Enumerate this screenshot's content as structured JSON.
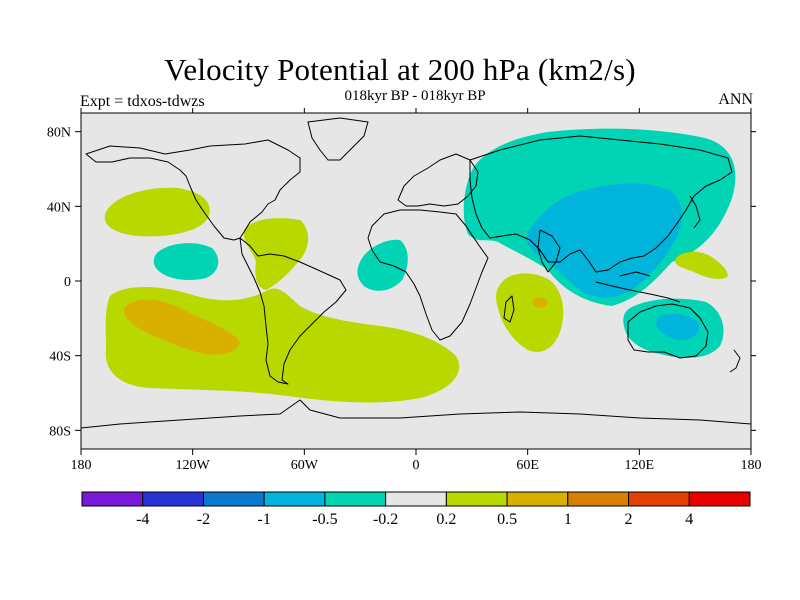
{
  "figure": {
    "title": "Velocity Potential at 200 hPa (km2/s)",
    "subtitle": "018kyr BP - 018kyr BP",
    "left_label": "Expt = tdxos-tdwzs",
    "right_label": "ANN"
  },
  "map": {
    "projection": "cylindrical equidistant",
    "lon_range": [
      -180,
      180
    ],
    "lat_range": [
      -90,
      90
    ],
    "background_color": "#e6e6e6",
    "coastline_color": "#000000",
    "x_ticks": [
      {
        "lon": -180,
        "label": "180"
      },
      {
        "lon": -120,
        "label": "120W"
      },
      {
        "lon": -60,
        "label": "60W"
      },
      {
        "lon": 0,
        "label": "0"
      },
      {
        "lon": 60,
        "label": "60E"
      },
      {
        "lon": 120,
        "label": "120E"
      },
      {
        "lon": 180,
        "label": "180"
      }
    ],
    "y_ticks": [
      {
        "lat": 80,
        "label": "80N"
      },
      {
        "lat": 40,
        "label": "40N"
      },
      {
        "lat": 0,
        "label": "0"
      },
      {
        "lat": -40,
        "label": "40S"
      },
      {
        "lat": -80,
        "label": "80S"
      }
    ]
  },
  "colorbar": {
    "colors": [
      "#7a18d8",
      "#2a34d6",
      "#0a7ad0",
      "#00b4dc",
      "#00d4b4",
      "#e6e6e6",
      "#b8d800",
      "#d8b000",
      "#d88000",
      "#e04000",
      "#e80000"
    ],
    "labels": [
      "-4",
      "-2",
      "-1",
      "-0.5",
      "-0.2",
      "0.2",
      "0.5",
      "1",
      "2",
      "4"
    ]
  },
  "regions": [
    {
      "name": "siberia-asia-negative",
      "level": "-0.2",
      "color": "#00d4b4"
    },
    {
      "name": "asia-core-negative",
      "level": "-0.5",
      "color": "#00b4dc"
    },
    {
      "name": "australia-negative",
      "level": "-0.2",
      "color": "#00d4b4"
    },
    {
      "name": "australia-core-negative",
      "level": "-0.5",
      "color": "#00b4dc"
    },
    {
      "name": "east-pacific-negative",
      "level": "-0.2",
      "color": "#00d4b4"
    },
    {
      "name": "atlantic-negative",
      "level": "-0.2",
      "color": "#00d4b4"
    },
    {
      "name": "north-pacific-positive",
      "level": "0.2",
      "color": "#b8d800"
    },
    {
      "name": "caribbean-positive",
      "level": "0.2",
      "color": "#b8d800"
    },
    {
      "name": "south-pacific-atlantic-positive",
      "level": "0.2",
      "color": "#b8d800"
    },
    {
      "name": "south-pacific-core-positive",
      "level": "0.5",
      "color": "#d8b000"
    },
    {
      "name": "indian-ocean-positive",
      "level": "0.2",
      "color": "#b8d800"
    },
    {
      "name": "indian-ocean-core-positive",
      "level": "0.5",
      "color": "#d8b000"
    },
    {
      "name": "west-pacific-positive",
      "level": "0.2",
      "color": "#b8d800"
    }
  ]
}
